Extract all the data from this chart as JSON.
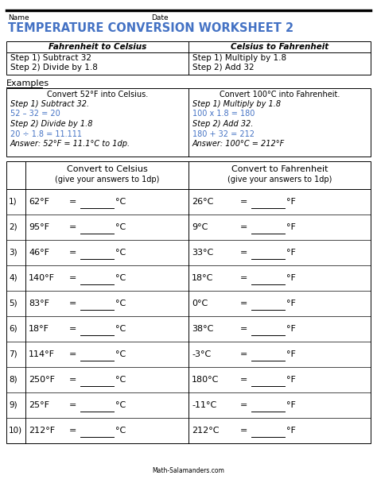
{
  "title": "TEMPERATURE CONVERSION WORKSHEET 2",
  "title_color": "#4472C4",
  "name_label": "Name",
  "date_label": "Date",
  "table1_headers": [
    "Fahrenheit to Celsius",
    "Celsius to Fahrenheit"
  ],
  "table1_rows": [
    [
      "Step 1) Subtract 32",
      "Step 1) Multiply by 1.8"
    ],
    [
      "Step 2) Divide by 1.8",
      "Step 2) Add 32"
    ]
  ],
  "examples_label": "Examples",
  "example_left_title": "Convert 52°F into Celsius.",
  "example_left_lines": [
    [
      "italic",
      "black",
      "Step 1) Subtract 32."
    ],
    [
      "normal",
      "#4472C4",
      "52 – 32 = 20"
    ],
    [
      "italic",
      "black",
      "Step 2) Divide by 1.8"
    ],
    [
      "normal",
      "#4472C4",
      "20 ÷ 1.8 = 11.111"
    ],
    [
      "italic",
      "black",
      "Answer: 52°F = 11.1°C to 1dp."
    ]
  ],
  "example_right_title": "Convert 100°C into Fahrenheit.",
  "example_right_lines": [
    [
      "italic",
      "black",
      "Step 1) Multiply by 1.8"
    ],
    [
      "normal",
      "#4472C4",
      "100 x 1.8 = 180"
    ],
    [
      "italic",
      "black",
      "Step 2) Add 32."
    ],
    [
      "normal",
      "#4472C4",
      "180 + 32 = 212"
    ],
    [
      "italic",
      "black",
      "Answer: 100°C = 212°F"
    ]
  ],
  "problems_header_left": "Convert to Celsius",
  "problems_header_left_sub": "(give your answers to 1dp)",
  "problems_header_right": "Convert to Fahrenheit",
  "problems_header_right_sub": "(give your answers to 1dp)",
  "fahrenheit_problems": [
    "62°F",
    "95°F",
    "46°F",
    "140°F",
    "83°F",
    "18°F",
    "114°F",
    "250°F",
    "25°F",
    "212°F"
  ],
  "celsius_problems": [
    "26°C",
    "9°C",
    "33°C",
    "18°C",
    "0°C",
    "38°C",
    "-3°C",
    "180°C",
    "-11°C",
    "212°C"
  ],
  "bg_color": "#ffffff",
  "border_color": "#000000",
  "blue_color": "#4472C4",
  "footer_text": "Math-Salamanders.com"
}
